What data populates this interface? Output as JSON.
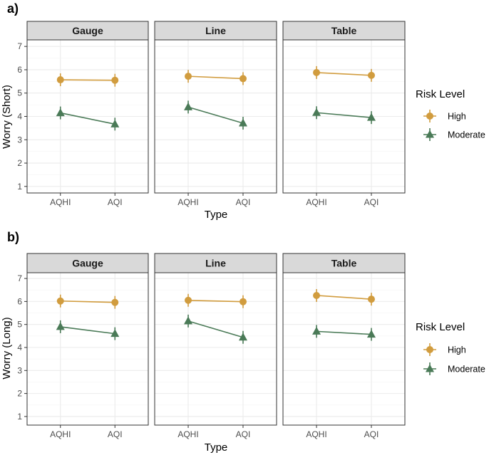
{
  "colors": {
    "High": "#D19C3E",
    "Moderate": "#4A7A57",
    "strip_bg": "#D9D9D9",
    "grid": "#EBEBEB",
    "frame": "#333333"
  },
  "chart_data": [
    {
      "type": "line",
      "panel_label": "a)",
      "ylabel": "Worry (Short)",
      "xlabel": "Type",
      "ylim": [
        0.75,
        7.25
      ],
      "yticks": [
        "1",
        "2",
        "3",
        "4",
        "5",
        "6",
        "7"
      ],
      "categories": [
        "AQHI",
        "AQI"
      ],
      "legend_title": "Risk Level",
      "facets": [
        {
          "name": "Gauge",
          "series": [
            {
              "name": "High",
              "values": [
                5.57,
                5.55
              ]
            },
            {
              "name": "Moderate",
              "values": [
                4.15,
                3.67
              ]
            }
          ]
        },
        {
          "name": "Line",
          "series": [
            {
              "name": "High",
              "values": [
                5.72,
                5.62
              ]
            },
            {
              "name": "Moderate",
              "values": [
                4.4,
                3.71
              ]
            }
          ]
        },
        {
          "name": "Table",
          "series": [
            {
              "name": "High",
              "values": [
                5.88,
                5.76
              ]
            },
            {
              "name": "Moderate",
              "values": [
                4.16,
                3.95
              ]
            }
          ]
        }
      ]
    },
    {
      "type": "line",
      "panel_label": "b)",
      "ylabel": "Worry (Long)",
      "xlabel": "Type",
      "ylim": [
        0.75,
        7.25
      ],
      "yticks": [
        "1",
        "2",
        "3",
        "4",
        "5",
        "6",
        "7"
      ],
      "categories": [
        "AQHI",
        "AQI"
      ],
      "legend_title": "Risk Level",
      "facets": [
        {
          "name": "Gauge",
          "series": [
            {
              "name": "High",
              "values": [
                6.02,
                5.96
              ]
            },
            {
              "name": "Moderate",
              "values": [
                4.9,
                4.6
              ]
            }
          ]
        },
        {
          "name": "Line",
          "series": [
            {
              "name": "High",
              "values": [
                6.05,
                5.99
              ]
            },
            {
              "name": "Moderate",
              "values": [
                5.15,
                4.44
              ]
            }
          ]
        },
        {
          "name": "Table",
          "series": [
            {
              "name": "High",
              "values": [
                6.26,
                6.1
              ]
            },
            {
              "name": "Moderate",
              "values": [
                4.7,
                4.57
              ]
            }
          ]
        }
      ]
    }
  ]
}
